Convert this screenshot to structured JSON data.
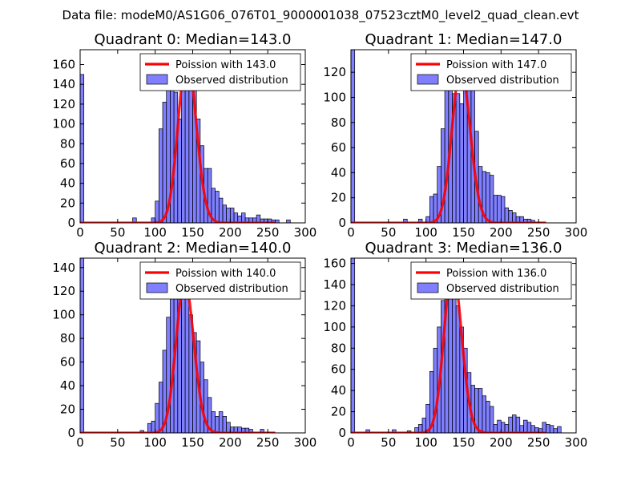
{
  "figure_title": "Data file: modeM0/AS1G06_076T01_9000001038_07523cztM0_level2_quad_clean.evt",
  "chart_data": [
    {
      "type": "bar",
      "title": "Quadrant 0: Median=143.0",
      "median": 143.0,
      "xlim": [
        0,
        300
      ],
      "ylim": [
        0,
        175
      ],
      "xticks": [
        0,
        50,
        100,
        150,
        200,
        250,
        300
      ],
      "yticks": [
        0,
        20,
        40,
        60,
        80,
        100,
        120,
        140,
        160
      ],
      "bin_width": 5,
      "bins": [
        [
          0,
          150
        ],
        [
          70,
          5
        ],
        [
          95,
          5
        ],
        [
          100,
          22
        ],
        [
          105,
          95
        ],
        [
          110,
          122
        ],
        [
          115,
          152
        ],
        [
          120,
          168
        ],
        [
          125,
          132
        ],
        [
          130,
          105
        ],
        [
          135,
          148
        ],
        [
          140,
          167
        ],
        [
          145,
          155
        ],
        [
          150,
          140
        ],
        [
          155,
          105
        ],
        [
          160,
          78
        ],
        [
          165,
          55
        ],
        [
          170,
          55
        ],
        [
          175,
          35
        ],
        [
          180,
          32
        ],
        [
          185,
          25
        ],
        [
          190,
          18
        ],
        [
          195,
          15
        ],
        [
          200,
          15
        ],
        [
          205,
          10
        ],
        [
          210,
          7
        ],
        [
          215,
          10
        ],
        [
          220,
          5
        ],
        [
          225,
          5
        ],
        [
          230,
          5
        ],
        [
          235,
          8
        ],
        [
          240,
          4
        ],
        [
          245,
          4
        ],
        [
          250,
          4
        ],
        [
          255,
          3
        ],
        [
          260,
          3
        ],
        [
          275,
          3
        ]
      ],
      "legend": [
        "Poission with 143.0",
        "Observed distribution"
      ]
    },
    {
      "type": "bar",
      "title": "Quadrant 1: Median=147.0",
      "median": 147.0,
      "xlim": [
        0,
        300
      ],
      "ylim": [
        0,
        138
      ],
      "xticks": [
        0,
        50,
        100,
        150,
        200,
        250,
        300
      ],
      "yticks": [
        0,
        20,
        40,
        60,
        80,
        100,
        120
      ],
      "bin_width": 5,
      "bins": [
        [
          0,
          138
        ],
        [
          70,
          3
        ],
        [
          90,
          3
        ],
        [
          100,
          5
        ],
        [
          105,
          21
        ],
        [
          110,
          23
        ],
        [
          115,
          45
        ],
        [
          120,
          75
        ],
        [
          125,
          110
        ],
        [
          130,
          110
        ],
        [
          135,
          103
        ],
        [
          140,
          103
        ],
        [
          145,
          95
        ],
        [
          150,
          118
        ],
        [
          155,
          123
        ],
        [
          160,
          115
        ],
        [
          165,
          73
        ],
        [
          170,
          45
        ],
        [
          175,
          41
        ],
        [
          180,
          40
        ],
        [
          185,
          38
        ],
        [
          190,
          22
        ],
        [
          195,
          22
        ],
        [
          200,
          21
        ],
        [
          205,
          12
        ],
        [
          210,
          10
        ],
        [
          215,
          8
        ],
        [
          220,
          5
        ],
        [
          225,
          5
        ],
        [
          230,
          3
        ],
        [
          235,
          3
        ],
        [
          240,
          2
        ]
      ],
      "legend": [
        "Poission with 147.0",
        "Observed distribution"
      ]
    },
    {
      "type": "bar",
      "title": "Quadrant 2: Median=140.0",
      "median": 140.0,
      "xlim": [
        0,
        300
      ],
      "ylim": [
        0,
        148
      ],
      "xticks": [
        0,
        50,
        100,
        150,
        200,
        250,
        300
      ],
      "yticks": [
        0,
        20,
        40,
        60,
        80,
        100,
        120,
        140
      ],
      "bin_width": 5,
      "bins": [
        [
          0,
          148
        ],
        [
          80,
          2
        ],
        [
          90,
          8
        ],
        [
          95,
          10
        ],
        [
          100,
          25
        ],
        [
          105,
          43
        ],
        [
          110,
          70
        ],
        [
          115,
          98
        ],
        [
          120,
          120
        ],
        [
          125,
          125
        ],
        [
          130,
          128
        ],
        [
          135,
          122
        ],
        [
          140,
          115
        ],
        [
          145,
          100
        ],
        [
          150,
          85
        ],
        [
          155,
          78
        ],
        [
          160,
          60
        ],
        [
          165,
          45
        ],
        [
          170,
          30
        ],
        [
          175,
          18
        ],
        [
          180,
          14
        ],
        [
          185,
          18
        ],
        [
          190,
          14
        ],
        [
          195,
          9
        ],
        [
          200,
          5
        ],
        [
          205,
          5
        ],
        [
          210,
          5
        ],
        [
          215,
          4
        ],
        [
          220,
          4
        ],
        [
          225,
          3
        ],
        [
          240,
          3
        ]
      ],
      "legend": [
        "Poission with 140.0",
        "Observed distribution"
      ]
    },
    {
      "type": "bar",
      "title": "Quadrant 3: Median=136.0",
      "median": 136.0,
      "xlim": [
        0,
        300
      ],
      "ylim": [
        0,
        165
      ],
      "xticks": [
        0,
        50,
        100,
        150,
        200,
        250,
        300
      ],
      "yticks": [
        0,
        20,
        40,
        60,
        80,
        100,
        120,
        140,
        160
      ],
      "bin_width": 5,
      "bins": [
        [
          0,
          165
        ],
        [
          20,
          3
        ],
        [
          55,
          3
        ],
        [
          75,
          2
        ],
        [
          85,
          5
        ],
        [
          90,
          8
        ],
        [
          95,
          14
        ],
        [
          100,
          27
        ],
        [
          105,
          58
        ],
        [
          110,
          80
        ],
        [
          115,
          100
        ],
        [
          120,
          125
        ],
        [
          125,
          130
        ],
        [
          130,
          145
        ],
        [
          135,
          155
        ],
        [
          140,
          120
        ],
        [
          145,
          100
        ],
        [
          150,
          80
        ],
        [
          155,
          57
        ],
        [
          160,
          45
        ],
        [
          165,
          42
        ],
        [
          170,
          42
        ],
        [
          175,
          35
        ],
        [
          180,
          30
        ],
        [
          185,
          25
        ],
        [
          190,
          8
        ],
        [
          195,
          12
        ],
        [
          200,
          10
        ],
        [
          205,
          8
        ],
        [
          210,
          15
        ],
        [
          215,
          17
        ],
        [
          220,
          15
        ],
        [
          225,
          7
        ],
        [
          230,
          12
        ],
        [
          235,
          10
        ],
        [
          240,
          7
        ],
        [
          245,
          5
        ],
        [
          250,
          4
        ],
        [
          255,
          10
        ],
        [
          260,
          8
        ],
        [
          265,
          7
        ],
        [
          270,
          4
        ],
        [
          275,
          6
        ]
      ],
      "legend": [
        "Poission with 136.0",
        "Observed distribution"
      ]
    }
  ]
}
